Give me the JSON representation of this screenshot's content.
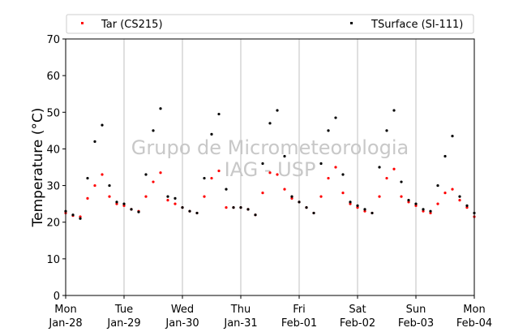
{
  "chart_data": {
    "type": "scatter",
    "xlabel": "",
    "ylabel": "Temperature (°C)",
    "ylim": [
      0,
      70
    ],
    "yticks": [
      0,
      10,
      20,
      30,
      40,
      50,
      60,
      70
    ],
    "xlim": [
      "2019-01-28",
      "2019-02-04"
    ],
    "xticks": [
      {
        "weekday": "Mon",
        "date": "Jan-28"
      },
      {
        "weekday": "Tue",
        "date": "Jan-29"
      },
      {
        "weekday": "Wed",
        "date": "Jan-30"
      },
      {
        "weekday": "Thu",
        "date": "Jan-31"
      },
      {
        "weekday": "Fri",
        "date": "Feb-01"
      },
      {
        "weekday": "Sat",
        "date": "Feb-02"
      },
      {
        "weekday": "Sun",
        "date": "Feb-03"
      },
      {
        "weekday": "Mon",
        "date": "Feb-04"
      }
    ],
    "grid": "vertical",
    "legend_placement": "top",
    "watermark": [
      "Grupo de Micrometeorologia",
      "IAG - USP"
    ],
    "series": [
      {
        "name": "Tar (CS215)",
        "color": "#ff0000",
        "points": [
          [
            "2019-01-28 00:00",
            22.5
          ],
          [
            "2019-01-28 03:00",
            21.8
          ],
          [
            "2019-01-28 06:00",
            21.5
          ],
          [
            "2019-01-28 09:00",
            26.5
          ],
          [
            "2019-01-28 12:00",
            30.0
          ],
          [
            "2019-01-28 15:00",
            33.0
          ],
          [
            "2019-01-28 18:00",
            27.0
          ],
          [
            "2019-01-28 21:00",
            25.0
          ],
          [
            "2019-01-29 00:00",
            24.5
          ],
          [
            "2019-01-29 03:00",
            23.5
          ],
          [
            "2019-01-29 06:00",
            23.0
          ],
          [
            "2019-01-29 09:00",
            27.0
          ],
          [
            "2019-01-29 12:00",
            31.0
          ],
          [
            "2019-01-29 15:00",
            33.5
          ],
          [
            "2019-01-29 18:00",
            26.0
          ],
          [
            "2019-01-29 21:00",
            25.0
          ],
          [
            "2019-01-30 00:00",
            24.0
          ],
          [
            "2019-01-30 03:00",
            23.0
          ],
          [
            "2019-01-30 06:00",
            22.5
          ],
          [
            "2019-01-30 09:00",
            27.0
          ],
          [
            "2019-01-30 12:00",
            32.0
          ],
          [
            "2019-01-30 15:00",
            34.0
          ],
          [
            "2019-01-30 18:00",
            24.0
          ],
          [
            "2019-01-30 21:00",
            24.0
          ],
          [
            "2019-01-31 00:00",
            24.0
          ],
          [
            "2019-01-31 03:00",
            23.5
          ],
          [
            "2019-01-31 06:00",
            22.0
          ],
          [
            "2019-01-31 09:00",
            28.0
          ],
          [
            "2019-01-31 12:00",
            33.5
          ],
          [
            "2019-01-31 15:00",
            33.0
          ],
          [
            "2019-01-31 18:00",
            29.0
          ],
          [
            "2019-01-31 21:00",
            26.5
          ],
          [
            "2019-02-01 00:00",
            25.5
          ],
          [
            "2019-02-01 03:00",
            24.0
          ],
          [
            "2019-02-01 06:00",
            22.5
          ],
          [
            "2019-02-01 09:00",
            27.0
          ],
          [
            "2019-02-01 12:00",
            32.0
          ],
          [
            "2019-02-01 15:00",
            35.0
          ],
          [
            "2019-02-01 18:00",
            28.0
          ],
          [
            "2019-02-01 21:00",
            25.0
          ],
          [
            "2019-02-02 00:00",
            24.0
          ],
          [
            "2019-02-02 03:00",
            23.0
          ],
          [
            "2019-02-02 06:00",
            22.5
          ],
          [
            "2019-02-02 09:00",
            27.0
          ],
          [
            "2019-02-02 12:00",
            32.0
          ],
          [
            "2019-02-02 15:00",
            34.5
          ],
          [
            "2019-02-02 18:00",
            27.0
          ],
          [
            "2019-02-02 21:00",
            25.5
          ],
          [
            "2019-02-03 00:00",
            24.5
          ],
          [
            "2019-02-03 03:00",
            23.0
          ],
          [
            "2019-02-03 06:00",
            22.5
          ],
          [
            "2019-02-03 09:00",
            25.0
          ],
          [
            "2019-02-03 12:00",
            28.0
          ],
          [
            "2019-02-03 15:00",
            29.0
          ],
          [
            "2019-02-03 18:00",
            26.0
          ],
          [
            "2019-02-03 21:00",
            24.0
          ],
          [
            "2019-02-04 00:00",
            21.5
          ]
        ]
      },
      {
        "name": "TSurface (SI-111)",
        "color": "#000000",
        "points": [
          [
            "2019-01-28 00:00",
            23.0
          ],
          [
            "2019-01-28 03:00",
            22.0
          ],
          [
            "2019-01-28 06:00",
            21.0
          ],
          [
            "2019-01-28 09:00",
            32.0
          ],
          [
            "2019-01-28 12:00",
            42.0
          ],
          [
            "2019-01-28 15:00",
            46.5
          ],
          [
            "2019-01-28 18:00",
            30.0
          ],
          [
            "2019-01-28 21:00",
            25.5
          ],
          [
            "2019-01-29 00:00",
            25.0
          ],
          [
            "2019-01-29 03:00",
            23.5
          ],
          [
            "2019-01-29 06:00",
            22.8
          ],
          [
            "2019-01-29 09:00",
            33.0
          ],
          [
            "2019-01-29 12:00",
            45.0
          ],
          [
            "2019-01-29 15:00",
            51.0
          ],
          [
            "2019-01-29 18:00",
            27.0
          ],
          [
            "2019-01-29 21:00",
            26.5
          ],
          [
            "2019-01-30 00:00",
            24.0
          ],
          [
            "2019-01-30 03:00",
            23.0
          ],
          [
            "2019-01-30 06:00",
            22.5
          ],
          [
            "2019-01-30 09:00",
            32.0
          ],
          [
            "2019-01-30 12:00",
            44.0
          ],
          [
            "2019-01-30 15:00",
            49.5
          ],
          [
            "2019-01-30 18:00",
            29.0
          ],
          [
            "2019-01-30 21:00",
            24.0
          ],
          [
            "2019-01-31 00:00",
            24.0
          ],
          [
            "2019-01-31 03:00",
            23.5
          ],
          [
            "2019-01-31 06:00",
            22.0
          ],
          [
            "2019-01-31 09:00",
            36.0
          ],
          [
            "2019-01-31 12:00",
            47.0
          ],
          [
            "2019-01-31 15:00",
            50.5
          ],
          [
            "2019-01-31 18:00",
            38.0
          ],
          [
            "2019-01-31 21:00",
            27.0
          ],
          [
            "2019-02-01 00:00",
            25.5
          ],
          [
            "2019-02-01 03:00",
            24.0
          ],
          [
            "2019-02-01 06:00",
            22.5
          ],
          [
            "2019-02-01 09:00",
            36.0
          ],
          [
            "2019-02-01 12:00",
            45.0
          ],
          [
            "2019-02-01 15:00",
            48.5
          ],
          [
            "2019-02-01 18:00",
            33.0
          ],
          [
            "2019-02-01 21:00",
            25.5
          ],
          [
            "2019-02-02 00:00",
            24.5
          ],
          [
            "2019-02-02 03:00",
            23.5
          ],
          [
            "2019-02-02 06:00",
            22.5
          ],
          [
            "2019-02-02 09:00",
            35.0
          ],
          [
            "2019-02-02 12:00",
            45.0
          ],
          [
            "2019-02-02 15:00",
            50.5
          ],
          [
            "2019-02-02 18:00",
            31.0
          ],
          [
            "2019-02-02 21:00",
            26.0
          ],
          [
            "2019-02-03 00:00",
            25.0
          ],
          [
            "2019-02-03 03:00",
            23.5
          ],
          [
            "2019-02-03 06:00",
            23.0
          ],
          [
            "2019-02-03 09:00",
            30.0
          ],
          [
            "2019-02-03 12:00",
            38.0
          ],
          [
            "2019-02-03 15:00",
            43.5
          ],
          [
            "2019-02-03 18:00",
            27.0
          ],
          [
            "2019-02-03 21:00",
            24.5
          ],
          [
            "2019-02-04 00:00",
            22.5
          ]
        ]
      }
    ]
  }
}
